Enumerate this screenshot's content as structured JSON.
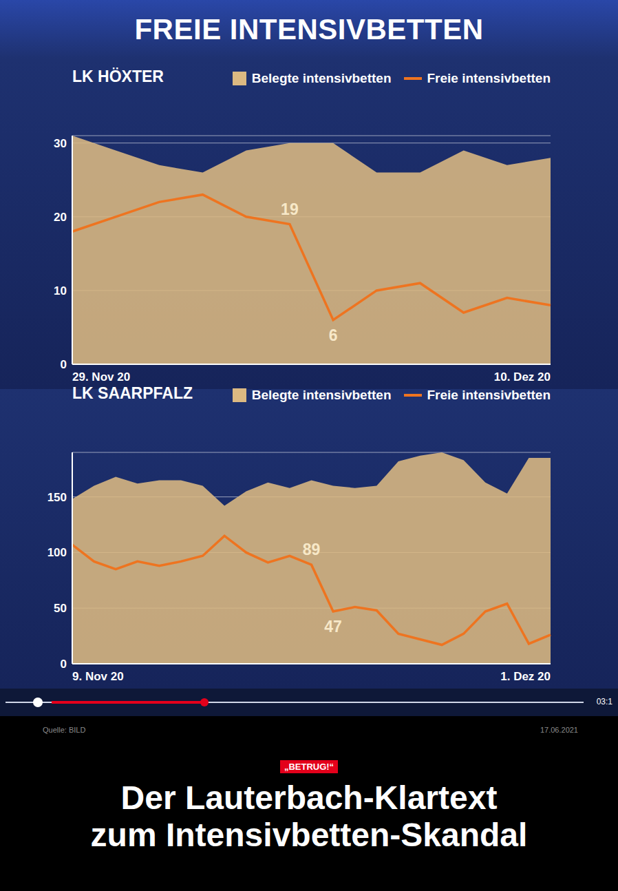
{
  "header": {
    "title": "FREIE INTENSIVBETTEN"
  },
  "chart_data": [
    {
      "type": "line",
      "title": "LK HÖXTER",
      "categories": [
        "29. Nov 20",
        null,
        null,
        null,
        null,
        null,
        null,
        null,
        null,
        null,
        null,
        "10. Dez 20"
      ],
      "series": [
        {
          "name": "Belegte intensivbetten",
          "type": "area",
          "color": "#dcb982",
          "values": [
            31,
            29,
            27,
            26,
            29,
            30,
            30,
            26,
            26,
            29,
            27,
            28
          ]
        },
        {
          "name": "Freie intensivbetten",
          "type": "line",
          "color": "#ee7420",
          "values": [
            18,
            20,
            22,
            23,
            20,
            19,
            6,
            10,
            11,
            7,
            9,
            8
          ],
          "value_labels": [
            null,
            null,
            null,
            null,
            null,
            "19",
            "6",
            null,
            null,
            null,
            null,
            null
          ]
        }
      ],
      "ylim": [
        0,
        31
      ],
      "yticks": [
        0,
        10,
        20,
        30
      ],
      "grid": true,
      "legend": "top"
    },
    {
      "type": "line",
      "title": "LK SAARPFALZ",
      "categories": [
        "9. Nov 20",
        null,
        null,
        null,
        null,
        null,
        null,
        null,
        null,
        null,
        null,
        null,
        null,
        null,
        null,
        null,
        null,
        null,
        null,
        null,
        null,
        null,
        "1. Dez 20"
      ],
      "series": [
        {
          "name": "Belegte intensivbetten",
          "type": "area",
          "color": "#dcb982",
          "values": [
            148,
            160,
            168,
            162,
            165,
            165,
            160,
            142,
            155,
            163,
            158,
            165,
            160,
            158,
            160,
            182,
            187,
            190,
            183,
            163,
            153,
            185,
            185
          ]
        },
        {
          "name": "Freie intensivbetten",
          "type": "line",
          "color": "#ee7420",
          "values": [
            107,
            92,
            85,
            92,
            88,
            92,
            97,
            115,
            100,
            91,
            97,
            89,
            47,
            51,
            48,
            27,
            22,
            17,
            27,
            47,
            54,
            18,
            26
          ],
          "value_labels": [
            null,
            null,
            null,
            null,
            null,
            null,
            null,
            null,
            null,
            null,
            null,
            "89",
            "47",
            null,
            null,
            null,
            null,
            null,
            null,
            null,
            null,
            null,
            null
          ]
        }
      ],
      "ylim": [
        0,
        190
      ],
      "yticks": [
        0,
        50,
        100,
        150
      ],
      "grid": true,
      "legend": "top"
    }
  ],
  "player": {
    "time": "03:1"
  },
  "footer": {
    "source": "Quelle: BILD",
    "date": "17.06.2021",
    "kicker": "„BETRUG!“",
    "headline": [
      "Der Lauterbach-Klartext",
      "zum Intensivbetten-Skandal"
    ]
  }
}
